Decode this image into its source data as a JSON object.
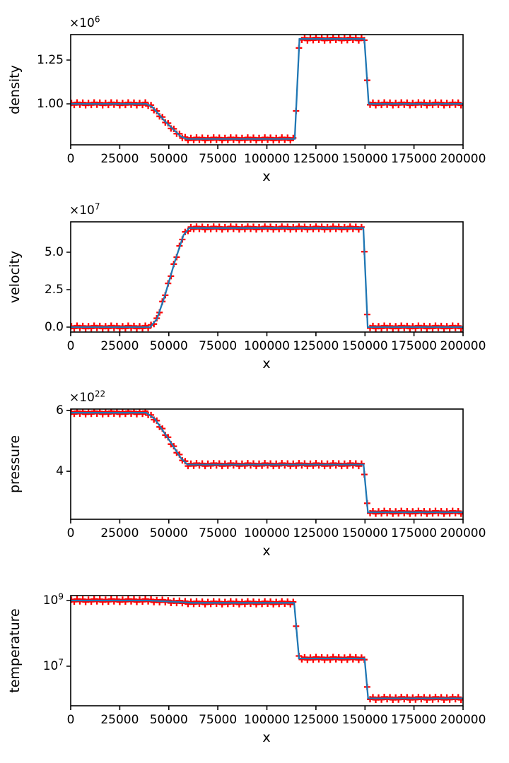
{
  "figure": {
    "background": "#ffffff",
    "kind": "4-panel shock-tube profile plot"
  },
  "colors": {
    "line": "#1f77b4",
    "marker": "#ff0000",
    "axis": "#000000",
    "text": "#000000"
  },
  "xaxis": {
    "label": "x",
    "lim": [
      0,
      200000
    ],
    "ticks": [
      {
        "v": 0,
        "t": "0"
      },
      {
        "v": 25000,
        "t": "25000"
      },
      {
        "v": 50000,
        "t": "50000"
      },
      {
        "v": 75000,
        "t": "75000"
      },
      {
        "v": 100000,
        "t": "100000"
      },
      {
        "v": 125000,
        "t": "125000"
      },
      {
        "v": 150000,
        "t": "150000"
      },
      {
        "v": 175000,
        "t": "175000"
      },
      {
        "v": 200000,
        "t": "200000"
      }
    ]
  },
  "markers": {
    "x0": 350,
    "dx": 1450,
    "count": 138,
    "style": "plus"
  },
  "chart_data": [
    {
      "name": "density",
      "type": "line",
      "ylabel": "density",
      "yscale": "linear",
      "unit_scale": 1000000,
      "offset": {
        "base": "×10",
        "exp": "6"
      },
      "ylim": [
        0.766,
        1.395
      ],
      "yticks": [
        {
          "v": 1.0,
          "t": "1.00"
        },
        {
          "v": 1.25,
          "t": "1.25"
        }
      ],
      "line_x": [
        0,
        38500,
        41500,
        48500,
        56000,
        59000,
        114200,
        116600,
        149700,
        151900,
        200000
      ],
      "line_y": [
        1.0,
        1.0,
        0.983,
        0.895,
        0.815,
        0.8,
        0.8,
        1.37,
        1.37,
        1.0,
        1.0
      ]
    },
    {
      "name": "velocity",
      "type": "line",
      "ylabel": "velocity",
      "yscale": "linear",
      "unit_scale": 10000000,
      "offset": {
        "base": "×10",
        "exp": "7"
      },
      "ylim": [
        -0.33,
        7.03
      ],
      "yticks": [
        {
          "v": 0.0,
          "t": "0.0"
        },
        {
          "v": 2.5,
          "t": "2.5"
        },
        {
          "v": 5.0,
          "t": "5.0"
        }
      ],
      "line_x": [
        0,
        40500,
        44000,
        48000,
        53000,
        57500,
        60500,
        149200,
        151400,
        200000
      ],
      "line_y": [
        0.0,
        0.0,
        0.55,
        2.1,
        4.35,
        6.15,
        6.62,
        6.62,
        0.0,
        0.0
      ]
    },
    {
      "name": "pressure",
      "type": "line",
      "ylabel": "pressure",
      "yscale": "linear",
      "unit_scale": 1e+22,
      "offset": {
        "base": "×10",
        "exp": "22"
      },
      "ylim": [
        2.42,
        6.05
      ],
      "yticks": [
        {
          "v": 4,
          "t": "4"
        },
        {
          "v": 6,
          "t": "6"
        }
      ],
      "line_x": [
        0,
        38500,
        43000,
        50000,
        56000,
        59500,
        149300,
        151500,
        200000
      ],
      "line_y": [
        5.93,
        5.93,
        5.72,
        5.05,
        4.45,
        4.22,
        4.22,
        2.65,
        2.65
      ]
    },
    {
      "name": "temperature",
      "type": "line",
      "ylabel": "temperature",
      "yscale": "log",
      "unit_scale": 1,
      "offset": null,
      "ylim": [
        625000,
        1413000000
      ],
      "yticks": [
        {
          "v": 10000000,
          "t": "10",
          "e": "7"
        },
        {
          "v": 1000000000,
          "t": "10",
          "e": "9"
        }
      ],
      "line_x": [
        0,
        40000,
        52000,
        62000,
        113900,
        116400,
        149800,
        151600,
        200000
      ],
      "line_y": [
        1000000000,
        1000000000,
        920000000,
        850000000,
        850000000,
        17200000,
        17200000,
        1050000,
        1050000
      ]
    }
  ]
}
